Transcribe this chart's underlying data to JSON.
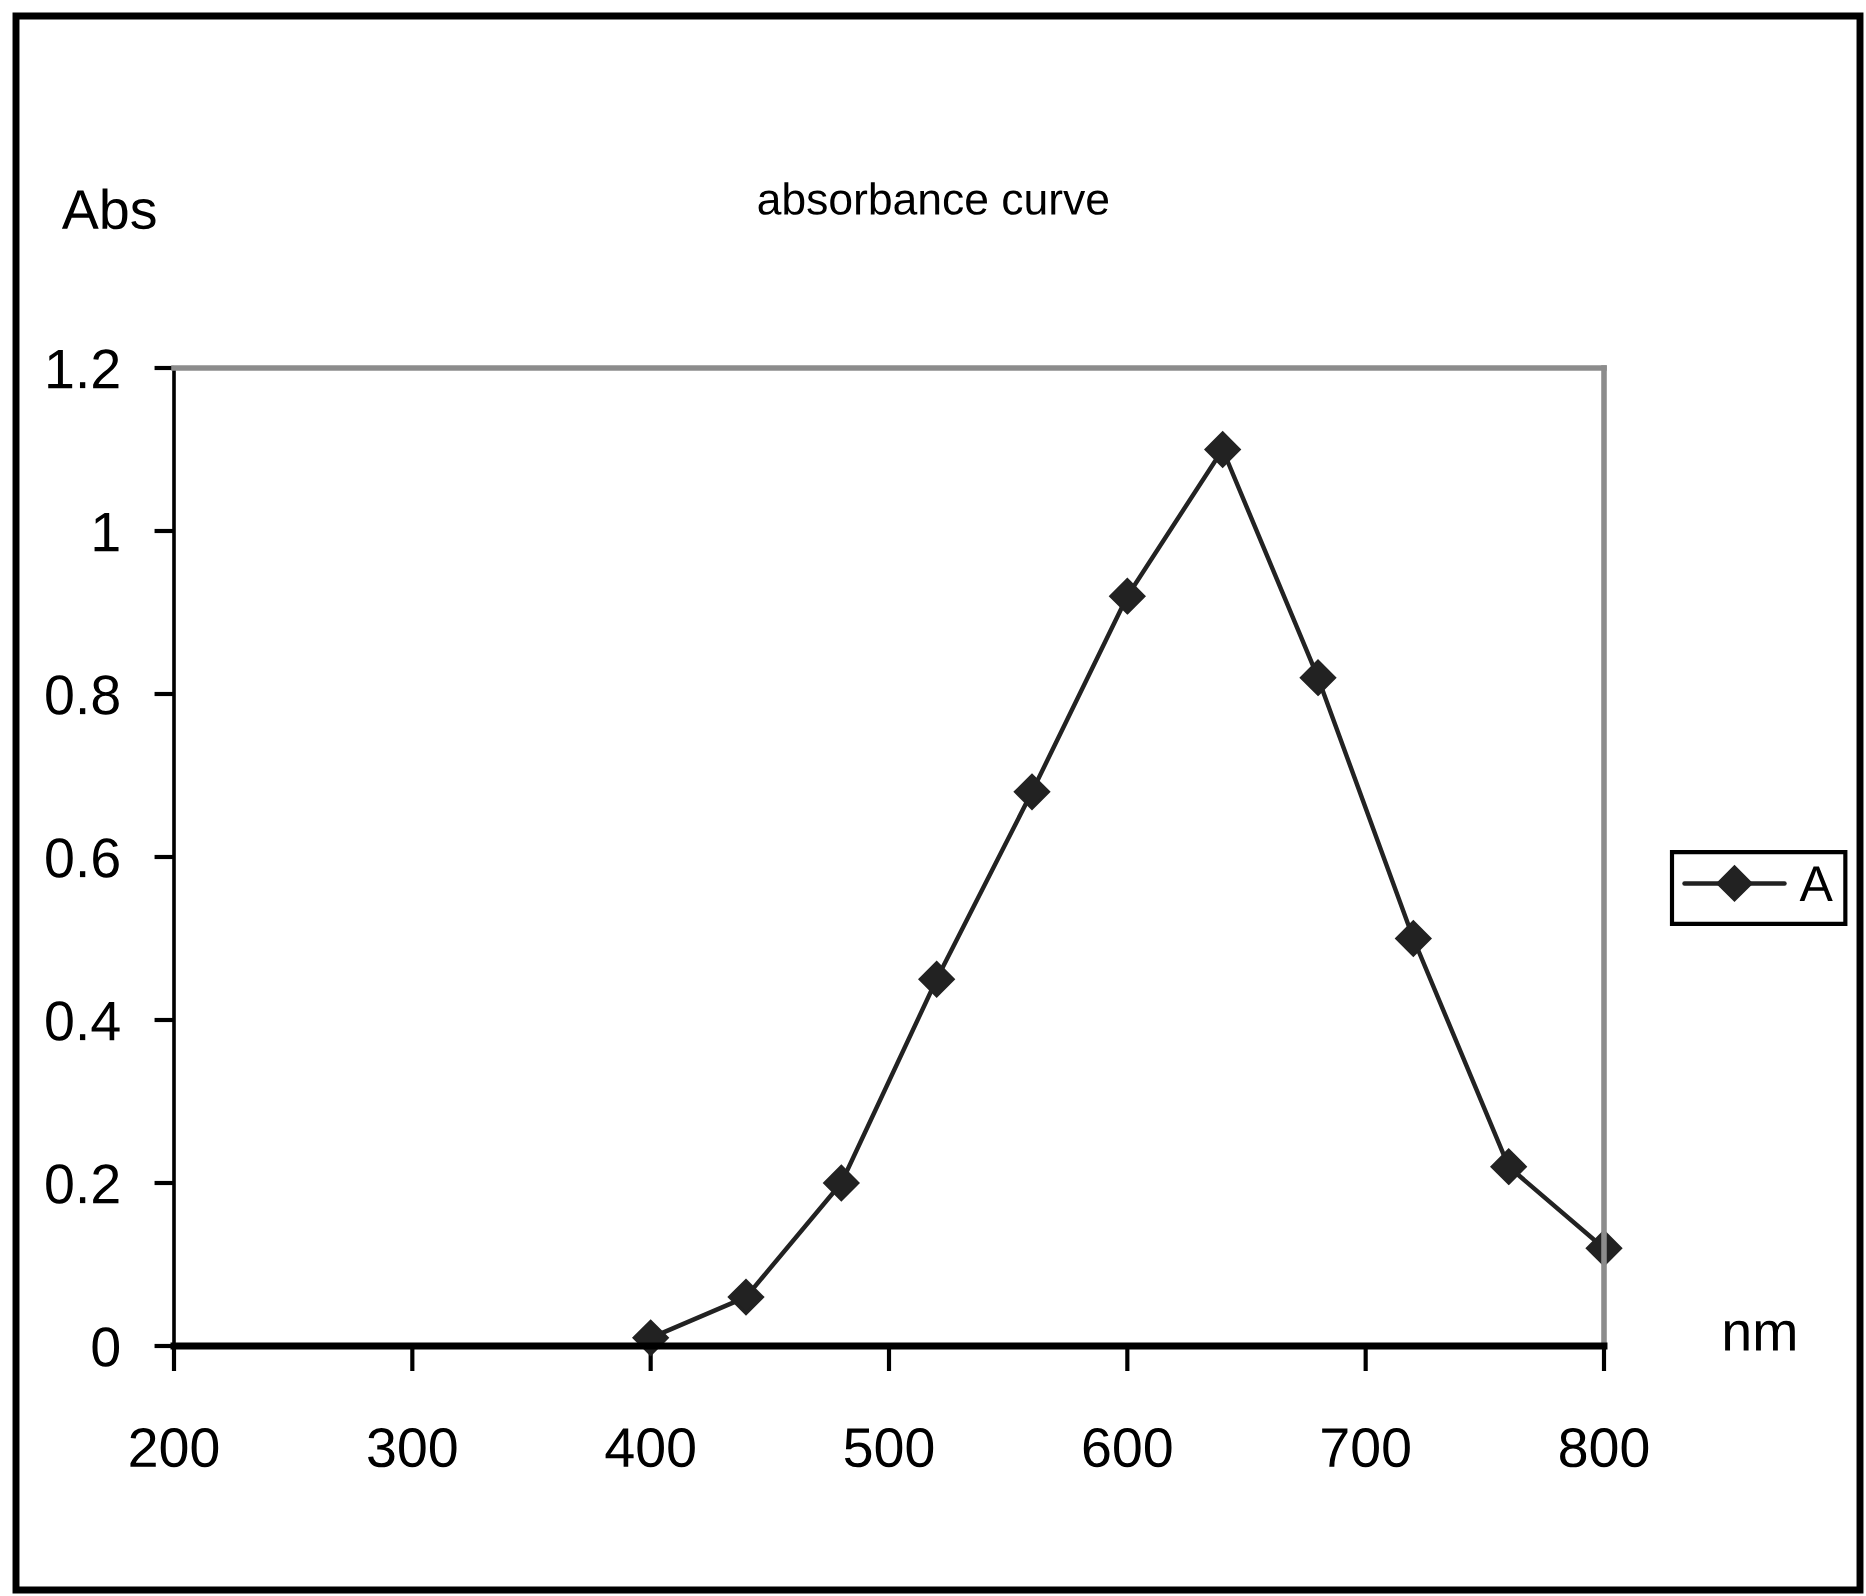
{
  "chart_data": {
    "type": "line",
    "title": "absorbance curve",
    "xlabel": "nm",
    "ylabel": "Abs",
    "x": [
      400,
      440,
      480,
      520,
      560,
      600,
      640,
      680,
      720,
      760,
      800
    ],
    "series": [
      {
        "name": "A",
        "color": "#222222",
        "values": [
          0.01,
          0.06,
          0.2,
          0.45,
          0.68,
          0.92,
          1.1,
          0.82,
          0.5,
          0.22,
          0.12
        ]
      }
    ],
    "xlim": [
      200,
      800
    ],
    "ylim": [
      0,
      1.2
    ],
    "xticks": [
      200,
      300,
      400,
      500,
      600,
      700,
      800
    ],
    "yticks": [
      0,
      0.2,
      0.4,
      0.6,
      0.8,
      1,
      1.2
    ],
    "marker": "diamond",
    "line_style": "solid",
    "grid": false,
    "legend": "right"
  }
}
